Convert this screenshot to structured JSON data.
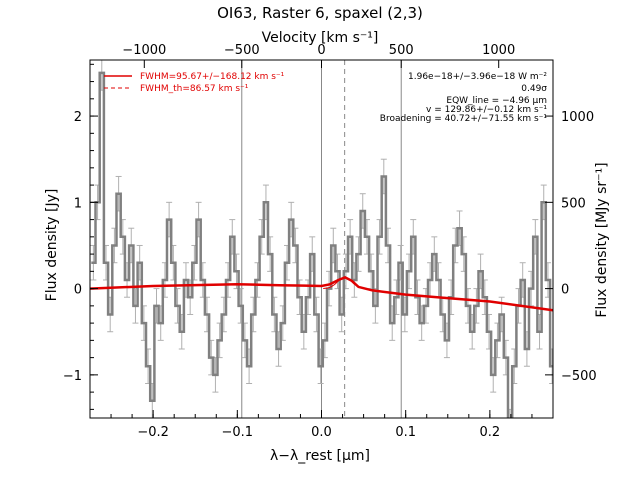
{
  "chart_data": {
    "type": "line",
    "title": "OI63, Raster 6, spaxel (2,3)",
    "xlabel": "λ−λ_rest [μm]",
    "ylabel": "Flux density [Jy]",
    "ylabel_right": "Flux density [MJy sr⁻¹]",
    "xlabel_top": "Velocity [km s⁻¹]",
    "xlim": [
      -0.275,
      0.275
    ],
    "ylim": [
      -1.5,
      2.65
    ],
    "xticks": [
      -0.2,
      -0.1,
      0.0,
      0.1,
      0.2
    ],
    "xtick_labels": [
      "−0.2",
      "−0.1",
      "0.0",
      "0.1",
      "0.2"
    ],
    "yticks": [
      -1,
      0,
      1,
      2
    ],
    "ytick_labels": [
      "−1",
      "0",
      "1",
      "2"
    ],
    "top_ticks_um": [
      -0.2105,
      -0.0947,
      0.0,
      0.0947,
      0.2105
    ],
    "top_tick_labels": [
      "−1000",
      "−500",
      "0",
      "500",
      "1000"
    ],
    "right_ticks_jy": [
      -1.0,
      0.0,
      1.0,
      2.0
    ],
    "right_tick_labels": [
      "−500",
      "0",
      "500",
      "1000"
    ],
    "vlines_solid": [
      -0.0947,
      0.0,
      0.0947
    ],
    "vline_dashed": 0.0275,
    "grid": false,
    "legend_position": "top-left",
    "legend": [
      {
        "label": "FWHM=95.67+/−168.12 km s⁻¹",
        "style": "solid",
        "color": "#e00000"
      },
      {
        "label": "FWHM_th=86.57 km s⁻¹",
        "style": "dashed",
        "color": "#e00000"
      }
    ],
    "annotations": [
      "1.96e−18+/−3.96e−18 W m⁻²",
      "0.49σ",
      "EQW_line = −4.96 μm",
      "v = 129.86+/−0.12 km s⁻¹",
      "Broadening = 40.72+/−71.55 km s⁻¹"
    ],
    "series": [
      {
        "style": "step",
        "color": "#808080",
        "x": [
          -0.271,
          -0.266,
          -0.261,
          -0.256,
          -0.251,
          -0.246,
          -0.241,
          -0.236,
          -0.231,
          -0.226,
          -0.221,
          -0.216,
          -0.211,
          -0.206,
          -0.201,
          -0.196,
          -0.191,
          -0.186,
          -0.181,
          -0.176,
          -0.171,
          -0.166,
          -0.161,
          -0.156,
          -0.151,
          -0.146,
          -0.141,
          -0.136,
          -0.131,
          -0.126,
          -0.121,
          -0.116,
          -0.111,
          -0.106,
          -0.101,
          -0.096,
          -0.091,
          -0.086,
          -0.081,
          -0.076,
          -0.071,
          -0.066,
          -0.061,
          -0.056,
          -0.051,
          -0.046,
          -0.041,
          -0.036,
          -0.031,
          -0.026,
          -0.021,
          -0.016,
          -0.011,
          -0.006,
          -0.001,
          0.004,
          0.009,
          0.014,
          0.019,
          0.024,
          0.029,
          0.034,
          0.039,
          0.044,
          0.049,
          0.054,
          0.059,
          0.064,
          0.069,
          0.074,
          0.079,
          0.084,
          0.089,
          0.094,
          0.099,
          0.104,
          0.109,
          0.114,
          0.119,
          0.124,
          0.129,
          0.134,
          0.139,
          0.144,
          0.149,
          0.154,
          0.159,
          0.164,
          0.169,
          0.174,
          0.179,
          0.184,
          0.189,
          0.194,
          0.199,
          0.204,
          0.209,
          0.214,
          0.219,
          0.224,
          0.229,
          0.234,
          0.239,
          0.244,
          0.249,
          0.254,
          0.259,
          0.264,
          0.269,
          0.274
        ],
        "y": [
          0.3,
          1.0,
          2.5,
          0.3,
          -0.3,
          0.5,
          1.1,
          0.6,
          0.1,
          0.5,
          -0.2,
          0.3,
          -0.4,
          -0.9,
          -1.3,
          -0.2,
          -0.4,
          0.1,
          0.8,
          0.3,
          -0.2,
          -0.5,
          0.1,
          -0.1,
          0.3,
          0.8,
          0.1,
          -0.3,
          -0.8,
          -1.0,
          -0.6,
          -0.3,
          0.1,
          0.6,
          0.2,
          -0.2,
          -0.6,
          -0.9,
          -0.3,
          0.1,
          0.6,
          1.0,
          0.4,
          -0.3,
          -0.7,
          -0.4,
          0.3,
          0.8,
          0.5,
          -0.1,
          -0.5,
          -0.1,
          0.4,
          -0.3,
          -0.9,
          -0.6,
          0.0,
          0.5,
          0.2,
          -0.3,
          0.2,
          0.6,
          0.1,
          0.4,
          0.9,
          0.6,
          0.2,
          -0.2,
          0.6,
          1.3,
          0.5,
          -0.4,
          -0.1,
          0.3,
          -0.3,
          0.2,
          0.6,
          -0.1,
          -0.4,
          -0.2,
          0.1,
          0.4,
          0.1,
          -0.3,
          -0.6,
          -0.1,
          0.5,
          0.7,
          0.4,
          -0.2,
          -0.5,
          -0.2,
          0.2,
          -0.1,
          -0.5,
          -1.0,
          -0.6,
          -0.3,
          -0.8,
          -1.6,
          -0.9,
          -0.2,
          0.1,
          -0.7,
          0.0,
          0.6,
          -0.5,
          1.0,
          0.1,
          -0.9
        ]
      },
      {
        "style": "line",
        "color": "#e00000",
        "x": [
          -0.275,
          -0.2,
          -0.1,
          -0.05,
          -0.02,
          0.0,
          0.01,
          0.02,
          0.028,
          0.036,
          0.044,
          0.06,
          0.1,
          0.15,
          0.2,
          0.275
        ],
        "y": [
          0.0,
          0.03,
          0.05,
          0.04,
          0.035,
          0.03,
          0.05,
          0.1,
          0.13,
          0.09,
          0.02,
          -0.02,
          -0.07,
          -0.11,
          -0.15,
          -0.25
        ]
      },
      {
        "style": "gaussian",
        "color": "#e00000",
        "center": 0.0275,
        "peak": 0.13,
        "sigma": 0.0085
      }
    ]
  }
}
